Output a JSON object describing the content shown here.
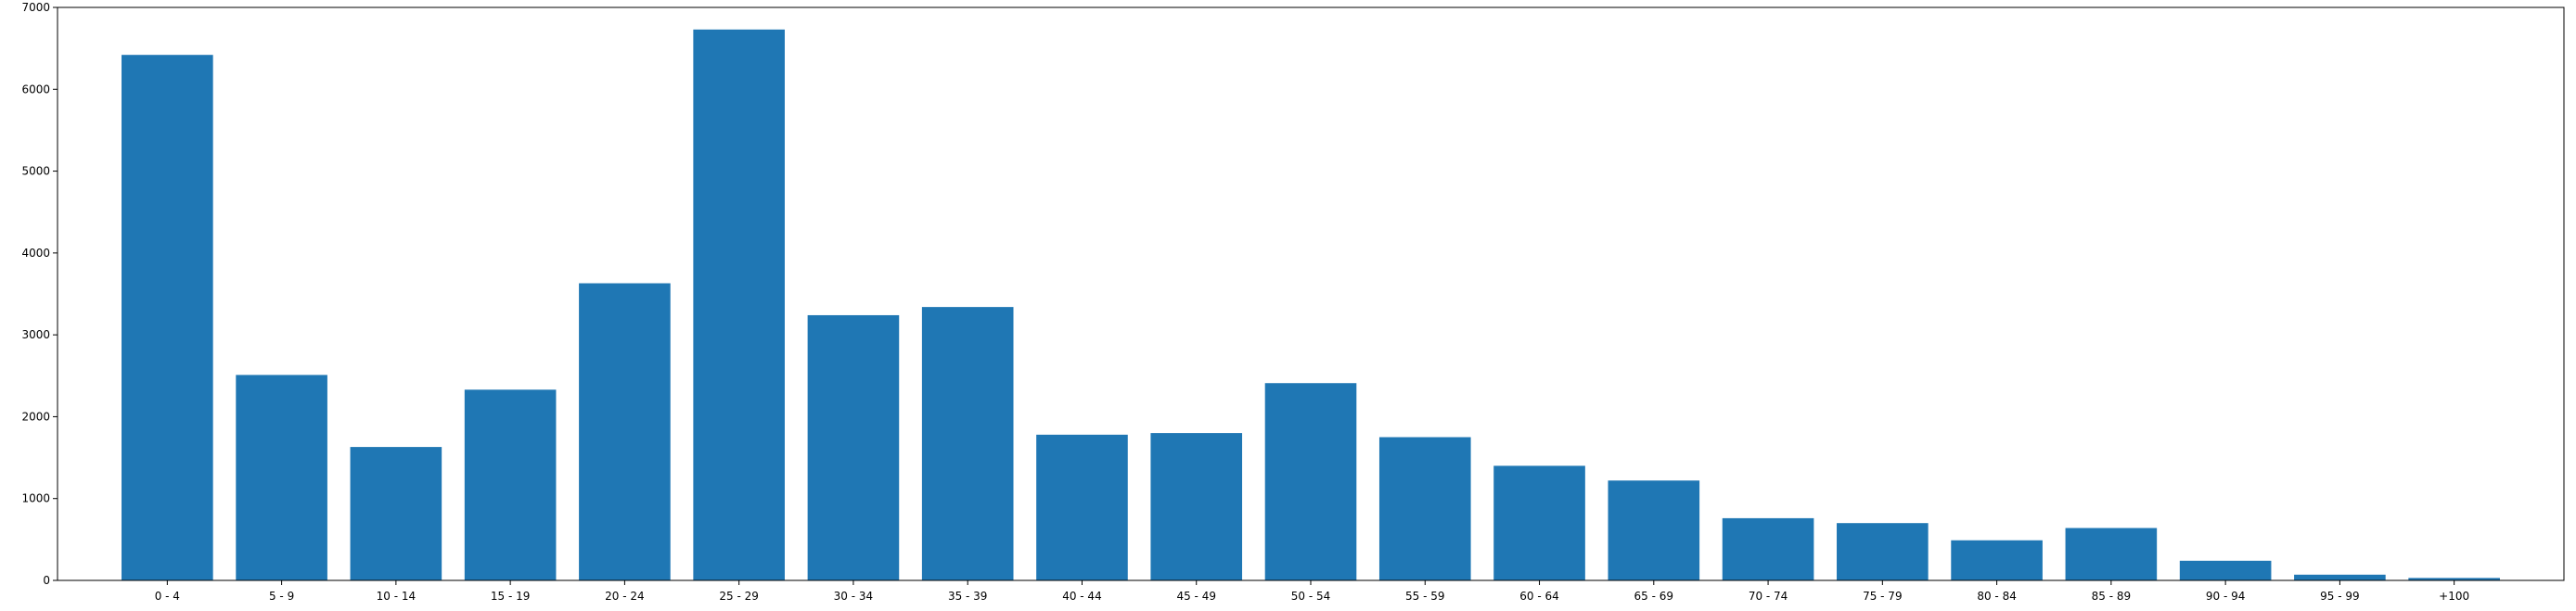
{
  "chart_data": {
    "type": "bar",
    "categories": [
      "0 - 4",
      "5 - 9",
      "10 - 14",
      "15 - 19",
      "20 - 24",
      "25 - 29",
      "30 - 34",
      "35 - 39",
      "40 - 44",
      "45 - 49",
      "50 - 54",
      "55 - 59",
      "60 - 64",
      "65 - 69",
      "70 - 74",
      "75 - 79",
      "80 - 84",
      "85 - 89",
      "90 - 94",
      "95 - 99",
      "+100"
    ],
    "values": [
      6420,
      2510,
      1630,
      2330,
      3630,
      6730,
      3240,
      3340,
      1780,
      1800,
      2410,
      1750,
      1400,
      1220,
      760,
      700,
      490,
      640,
      240,
      70,
      30
    ],
    "ylim": [
      0,
      7000
    ],
    "yticks": [
      0,
      1000,
      2000,
      3000,
      4000,
      5000,
      6000,
      7000
    ],
    "bar_color": "#1f77b4",
    "grid": false,
    "legend": "none"
  }
}
